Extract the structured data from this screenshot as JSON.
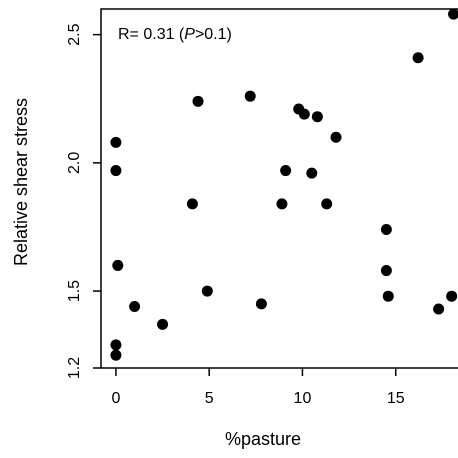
{
  "chart_data": {
    "type": "scatter",
    "title": "",
    "xlabel": "%pasture",
    "ylabel": "Relative shear stress",
    "xlim": [
      -0.8,
      18.5
    ],
    "ylim": [
      1.2,
      2.6
    ],
    "xticks": [
      0,
      5,
      10,
      15
    ],
    "yticks": [
      1.2,
      1.5,
      2.0,
      2.5
    ],
    "grid": false,
    "annotation": {
      "prefix": "R= 0.31 (",
      "italic": "P",
      "suffix": ">0.1)"
    },
    "marker_color": "#000000",
    "points": [
      {
        "x": 0.0,
        "y": 2.08
      },
      {
        "x": 0.0,
        "y": 1.97
      },
      {
        "x": 0.1,
        "y": 1.6
      },
      {
        "x": 0.0,
        "y": 1.29
      },
      {
        "x": 0.0,
        "y": 1.25
      },
      {
        "x": 1.0,
        "y": 1.44
      },
      {
        "x": 2.5,
        "y": 1.37
      },
      {
        "x": 4.1,
        "y": 1.84
      },
      {
        "x": 4.4,
        "y": 2.24
      },
      {
        "x": 4.9,
        "y": 1.5
      },
      {
        "x": 7.2,
        "y": 2.26
      },
      {
        "x": 7.8,
        "y": 1.45
      },
      {
        "x": 8.9,
        "y": 1.84
      },
      {
        "x": 9.1,
        "y": 1.97
      },
      {
        "x": 9.8,
        "y": 2.21
      },
      {
        "x": 10.1,
        "y": 2.19
      },
      {
        "x": 10.5,
        "y": 1.96
      },
      {
        "x": 10.8,
        "y": 2.18
      },
      {
        "x": 11.3,
        "y": 1.84
      },
      {
        "x": 11.8,
        "y": 2.1
      },
      {
        "x": 14.5,
        "y": 1.74
      },
      {
        "x": 14.5,
        "y": 1.58
      },
      {
        "x": 14.6,
        "y": 1.48
      },
      {
        "x": 16.2,
        "y": 2.41
      },
      {
        "x": 17.3,
        "y": 1.43
      },
      {
        "x": 18.0,
        "y": 1.48
      },
      {
        "x": 18.1,
        "y": 2.58
      }
    ]
  }
}
